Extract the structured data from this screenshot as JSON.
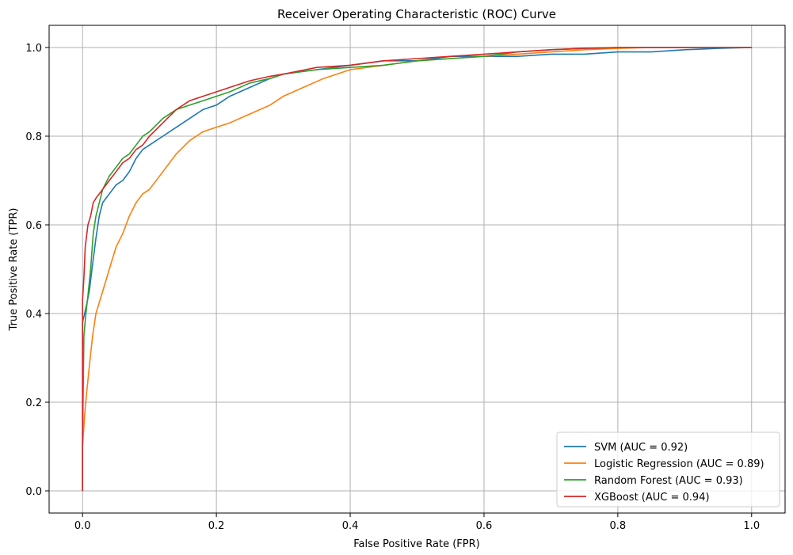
{
  "chart_data": {
    "type": "line",
    "title": "Receiver Operating Characteristic (ROC) Curve",
    "xlabel": "False Positive Rate (FPR)",
    "ylabel": "True Positive Rate (TPR)",
    "xlim": [
      -0.05,
      1.05
    ],
    "ylim": [
      -0.05,
      1.05
    ],
    "xticks": [
      "0.0",
      "0.2",
      "0.4",
      "0.6",
      "0.8",
      "1.0"
    ],
    "yticks": [
      "0.0",
      "0.2",
      "0.4",
      "0.6",
      "0.8",
      "1.0"
    ],
    "grid": true,
    "legend_position": "bottom-right",
    "series": [
      {
        "name": "SVM (AUC = 0.92)",
        "color": "#1f77b4",
        "x": [
          0,
          0.0,
          0.003,
          0.006,
          0.01,
          0.014,
          0.02,
          0.025,
          0.03,
          0.04,
          0.05,
          0.06,
          0.07,
          0.08,
          0.09,
          0.1,
          0.12,
          0.14,
          0.16,
          0.18,
          0.2,
          0.22,
          0.25,
          0.28,
          0.3,
          0.35,
          0.4,
          0.45,
          0.5,
          0.55,
          0.6,
          0.65,
          0.7,
          0.75,
          0.8,
          0.85,
          0.9,
          0.95,
          1.0
        ],
        "y": [
          0,
          0.38,
          0.4,
          0.42,
          0.45,
          0.5,
          0.57,
          0.62,
          0.65,
          0.67,
          0.69,
          0.7,
          0.72,
          0.75,
          0.77,
          0.78,
          0.8,
          0.82,
          0.84,
          0.86,
          0.87,
          0.89,
          0.91,
          0.93,
          0.94,
          0.95,
          0.96,
          0.97,
          0.97,
          0.98,
          0.98,
          0.98,
          0.985,
          0.985,
          0.99,
          0.99,
          0.995,
          0.998,
          1.0
        ]
      },
      {
        "name": "Logistic Regression (AUC = 0.89)",
        "color": "#ff7f0e",
        "x": [
          0,
          0.0,
          0.003,
          0.006,
          0.01,
          0.015,
          0.02,
          0.03,
          0.04,
          0.05,
          0.06,
          0.07,
          0.08,
          0.09,
          0.1,
          0.12,
          0.14,
          0.16,
          0.18,
          0.2,
          0.22,
          0.25,
          0.28,
          0.3,
          0.33,
          0.36,
          0.4,
          0.45,
          0.5,
          0.55,
          0.6,
          0.65,
          0.7,
          0.75,
          0.8,
          0.85,
          0.9,
          0.95,
          1.0
        ],
        "y": [
          0,
          0.1,
          0.17,
          0.22,
          0.28,
          0.35,
          0.4,
          0.45,
          0.5,
          0.55,
          0.58,
          0.62,
          0.65,
          0.67,
          0.68,
          0.72,
          0.76,
          0.79,
          0.81,
          0.82,
          0.83,
          0.85,
          0.87,
          0.89,
          0.91,
          0.93,
          0.95,
          0.96,
          0.97,
          0.975,
          0.98,
          0.985,
          0.99,
          0.995,
          0.998,
          1.0,
          1.0,
          1.0,
          1.0
        ]
      },
      {
        "name": "Random Forest (AUC = 0.93)",
        "color": "#2ca02c",
        "x": [
          0,
          0.0,
          0.002,
          0.005,
          0.008,
          0.012,
          0.016,
          0.02,
          0.03,
          0.04,
          0.05,
          0.06,
          0.07,
          0.08,
          0.09,
          0.1,
          0.12,
          0.14,
          0.16,
          0.18,
          0.2,
          0.22,
          0.25,
          0.28,
          0.3,
          0.35,
          0.4,
          0.45,
          0.5,
          0.55,
          0.6,
          0.65,
          0.7,
          0.75,
          0.8,
          0.85,
          0.9,
          0.95,
          1.0
        ],
        "y": [
          0,
          0.1,
          0.35,
          0.4,
          0.44,
          0.5,
          0.58,
          0.62,
          0.68,
          0.71,
          0.73,
          0.75,
          0.76,
          0.78,
          0.8,
          0.81,
          0.84,
          0.86,
          0.87,
          0.88,
          0.89,
          0.9,
          0.92,
          0.93,
          0.94,
          0.95,
          0.955,
          0.96,
          0.97,
          0.975,
          0.98,
          0.99,
          0.995,
          0.998,
          1.0,
          1.0,
          1.0,
          1.0,
          1.0
        ]
      },
      {
        "name": "XGBoost (AUC = 0.94)",
        "color": "#d62728",
        "x": [
          0,
          0.0,
          0.002,
          0.004,
          0.008,
          0.012,
          0.016,
          0.02,
          0.03,
          0.04,
          0.05,
          0.06,
          0.07,
          0.08,
          0.09,
          0.1,
          0.12,
          0.14,
          0.16,
          0.18,
          0.2,
          0.22,
          0.25,
          0.28,
          0.3,
          0.35,
          0.4,
          0.45,
          0.5,
          0.55,
          0.6,
          0.65,
          0.7,
          0.75,
          0.8,
          0.85,
          0.9,
          0.95,
          1.0
        ],
        "y": [
          0,
          0.43,
          0.48,
          0.55,
          0.6,
          0.62,
          0.65,
          0.66,
          0.68,
          0.7,
          0.72,
          0.74,
          0.75,
          0.77,
          0.78,
          0.8,
          0.83,
          0.86,
          0.88,
          0.89,
          0.9,
          0.91,
          0.925,
          0.935,
          0.94,
          0.955,
          0.96,
          0.97,
          0.975,
          0.98,
          0.985,
          0.99,
          0.995,
          0.998,
          1.0,
          1.0,
          1.0,
          1.0,
          1.0
        ]
      }
    ]
  }
}
